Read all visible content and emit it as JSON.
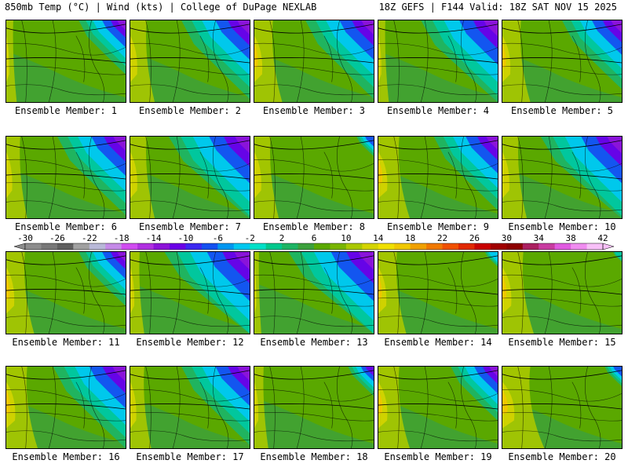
{
  "header": {
    "left": "850mb Temp (°C) | Wind (kts) | College of DuPage NEXLAB",
    "right": "18Z GEFS | F144 Valid: 18Z SAT NOV 15 2025"
  },
  "members": [
    {
      "label": "Ensemble Member: 1",
      "cold": 0.55,
      "warm": 0.15
    },
    {
      "label": "Ensemble Member: 2",
      "cold": 0.8,
      "warm": 0.35
    },
    {
      "label": "Ensemble Member: 3",
      "cold": 0.8,
      "warm": 0.4
    },
    {
      "label": "Ensemble Member: 4",
      "cold": 0.9,
      "warm": 0.15
    },
    {
      "label": "Ensemble Member: 5",
      "cold": 0.7,
      "warm": 0.4
    },
    {
      "label": "Ensemble Member: 6",
      "cold": 0.8,
      "warm": 0.3
    },
    {
      "label": "Ensemble Member: 7",
      "cold": 0.95,
      "warm": 0.35
    },
    {
      "label": "Ensemble Member: 8",
      "cold": 0.2,
      "warm": 0.35
    },
    {
      "label": "Ensemble Member: 9",
      "cold": 0.75,
      "warm": 0.45
    },
    {
      "label": "Ensemble Member: 10",
      "cold": 0.95,
      "warm": 0.35
    },
    {
      "label": "Ensemble Member: 11",
      "cold": 0.55,
      "warm": 0.4
    },
    {
      "label": "Ensemble Member: 12",
      "cold": 1.0,
      "warm": 0.2
    },
    {
      "label": "Ensemble Member: 13",
      "cold": 1.0,
      "warm": 0.1
    },
    {
      "label": "Ensemble Member: 14",
      "cold": 0.15,
      "warm": 0.4
    },
    {
      "label": "Ensemble Member: 15",
      "cold": 0.1,
      "warm": 0.45
    },
    {
      "label": "Ensemble Member: 16",
      "cold": 0.85,
      "warm": 0.45
    },
    {
      "label": "Ensemble Member: 17",
      "cold": 0.8,
      "warm": 0.3
    },
    {
      "label": "Ensemble Member: 18",
      "cold": 0.3,
      "warm": 0.2
    },
    {
      "label": "Ensemble Member: 19",
      "cold": 0.55,
      "warm": 0.45
    },
    {
      "label": "Ensemble Member: 20",
      "cold": 0.2,
      "warm": 0.6
    }
  ],
  "colorbar": {
    "labels": [
      "-30",
      "-26",
      "-22",
      "-18",
      "-14",
      "-10",
      "-6",
      "-2",
      "2",
      "6",
      "10",
      "14",
      "18",
      "22",
      "26",
      "30",
      "34",
      "38",
      "42"
    ],
    "colors": [
      "#8c8c8c",
      "#777777",
      "#5e5e5e",
      "#a0a0a0",
      "#b8b8d8",
      "#c58ae8",
      "#d04cf0",
      "#b030e0",
      "#8c14d8",
      "#6a00e6",
      "#3c28f0",
      "#1450f0",
      "#0096f0",
      "#00c8f0",
      "#00e0c8",
      "#00c88c",
      "#1eb464",
      "#3ca03c",
      "#5aa800",
      "#78b400",
      "#aac800",
      "#d4d400",
      "#f0e000",
      "#f0c800",
      "#f0a000",
      "#f07800",
      "#f05000",
      "#e02800",
      "#c80000",
      "#a00000",
      "#8c0000",
      "#aa2060",
      "#c83ca0",
      "#e05ae0",
      "#f08cf0",
      "#f8c0f8"
    ]
  }
}
